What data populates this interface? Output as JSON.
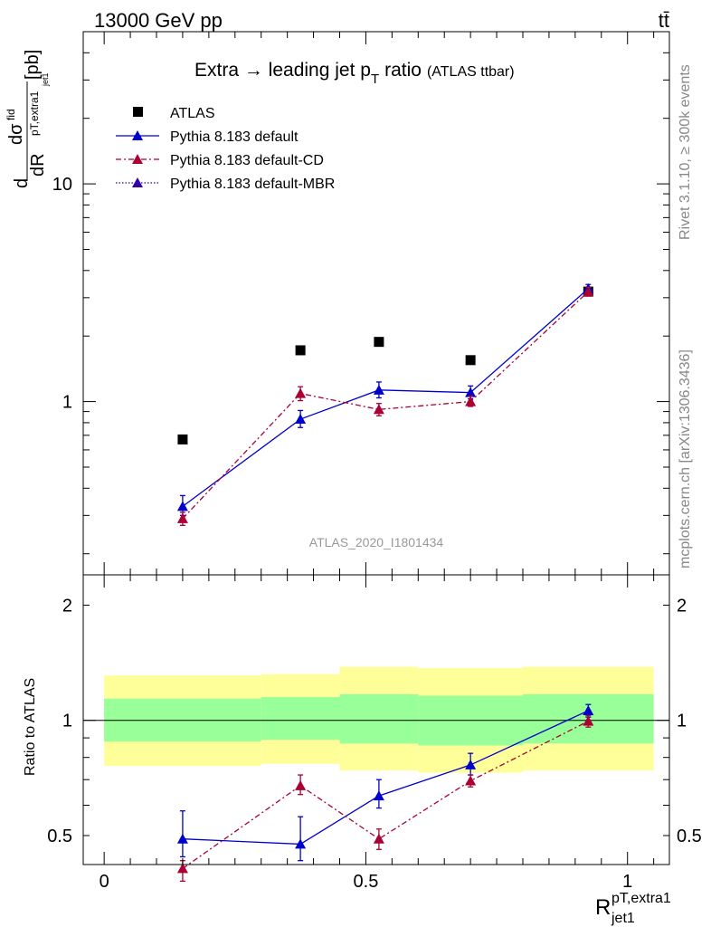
{
  "header": {
    "left": "13000 GeV pp",
    "right": "tt̄"
  },
  "side_labels": {
    "rivet": "Rivet 3.1.10, ≥ 300k events",
    "mcplots": "mcplots.cern.ch [arXiv:1306.3436]"
  },
  "colors": {
    "atlas": "#000000",
    "default": "#0000cc",
    "cd": "#aa0033",
    "mbr": "#3300aa",
    "band_inner": "#99ff99",
    "band_outer": "#ffff99"
  },
  "chart_data": [
    {
      "type": "scatter",
      "title": "Extra → leading jet p_T ratio",
      "title_main": "Extra → leading jet p",
      "title_sub": "T",
      "title_suffix": "ratio",
      "title_note": "(ATLAS ttbar)",
      "watermark": "ATLAS_2020_I1801434",
      "ylabel": "dσ^fid / dR^(pT,extra1)_jet1 [pb]",
      "ylabel_d": "d",
      "ylabel_sigma": "dσ",
      "ylabel_sigma_sup": "fid",
      "ylabel_dR": "dR",
      "ylabel_sub1": "pT,extra1",
      "ylabel_sub2": "jet1",
      "ylabel_unit": "[pb]",
      "yscale": "log",
      "ylim": [
        0.16,
        50
      ],
      "xlim": [
        -0.04,
        1.08
      ],
      "yticks": [
        {
          "value": 1,
          "label": "1"
        },
        {
          "value": 10,
          "label": "10"
        }
      ],
      "legend": [
        {
          "name": "ATLAS",
          "style": "square"
        },
        {
          "name": "Pythia 8.183 default",
          "style": "solid"
        },
        {
          "name": "Pythia 8.183 default-CD",
          "style": "dashdot"
        },
        {
          "name": "Pythia 8.183 default-MBR",
          "style": "dotted"
        }
      ],
      "series": [
        {
          "name": "ATLAS",
          "x": [
            0.15,
            0.375,
            0.525,
            0.7,
            0.925
          ],
          "y": [
            0.67,
            1.72,
            1.88,
            1.55,
            3.2
          ]
        },
        {
          "name": "Pythia 8.183 default",
          "x": [
            0.15,
            0.375,
            0.525,
            0.7,
            0.925
          ],
          "y": [
            0.33,
            0.83,
            1.13,
            1.1,
            3.3
          ],
          "err_lo": [
            0.3,
            0.76,
            1.04,
            1.03,
            3.15
          ],
          "err_hi": [
            0.37,
            0.91,
            1.23,
            1.18,
            3.45
          ]
        },
        {
          "name": "Pythia 8.183 default-CD",
          "x": [
            0.15,
            0.375,
            0.525,
            0.7,
            0.925
          ],
          "y": [
            0.29,
            1.09,
            0.92,
            1.0,
            3.2
          ],
          "err_lo": [
            0.27,
            1.01,
            0.86,
            0.95,
            3.05
          ],
          "err_hi": [
            0.31,
            1.17,
            0.98,
            1.06,
            3.35
          ]
        }
      ]
    },
    {
      "type": "scatter",
      "ylabel": "Ratio to ATLAS",
      "xlabel": "R^(pT,extra1)_jet1",
      "xlabel_main": "R",
      "xlabel_sup": "pT,extra1",
      "xlabel_sub": "jet1",
      "yscale": "log",
      "ylim": [
        0.42,
        2.4
      ],
      "xlim": [
        -0.04,
        1.08
      ],
      "yticks": [
        {
          "value": 0.5,
          "label": "0.5"
        },
        {
          "value": 1,
          "label": "1"
        },
        {
          "value": 2,
          "label": "2"
        }
      ],
      "xticks": [
        {
          "value": 0,
          "label": "0"
        },
        {
          "value": 0.5,
          "label": "0.5"
        },
        {
          "value": 1,
          "label": "1"
        }
      ],
      "bands": [
        {
          "x0": 0.0,
          "x1": 0.3,
          "inner": [
            0.88,
            1.14
          ],
          "outer": [
            0.76,
            1.31
          ]
        },
        {
          "x0": 0.3,
          "x1": 0.45,
          "inner": [
            0.89,
            1.15
          ],
          "outer": [
            0.77,
            1.32
          ]
        },
        {
          "x0": 0.45,
          "x1": 0.6,
          "inner": [
            0.87,
            1.17
          ],
          "outer": [
            0.74,
            1.38
          ]
        },
        {
          "x0": 0.6,
          "x1": 0.8,
          "inner": [
            0.86,
            1.16
          ],
          "outer": [
            0.73,
            1.37
          ]
        },
        {
          "x0": 0.8,
          "x1": 1.05,
          "inner": [
            0.87,
            1.17
          ],
          "outer": [
            0.74,
            1.38
          ]
        }
      ],
      "series": [
        {
          "name": "Pythia 8.183 default",
          "x": [
            0.15,
            0.375,
            0.525,
            0.7,
            0.925
          ],
          "y": [
            0.49,
            0.475,
            0.635,
            0.765,
            1.06
          ],
          "err_lo": [
            0.44,
            0.43,
            0.59,
            0.72,
            1.02
          ],
          "err_hi": [
            0.58,
            0.56,
            0.7,
            0.82,
            1.1
          ]
        },
        {
          "name": "Pythia 8.183 default-CD",
          "x": [
            0.15,
            0.375,
            0.525,
            0.7,
            0.925
          ],
          "y": [
            0.41,
            0.675,
            0.49,
            0.695,
            0.995
          ],
          "err_lo": [
            0.38,
            0.64,
            0.46,
            0.67,
            0.96
          ],
          "err_hi": [
            0.43,
            0.72,
            0.52,
            0.72,
            1.03
          ]
        }
      ]
    }
  ]
}
